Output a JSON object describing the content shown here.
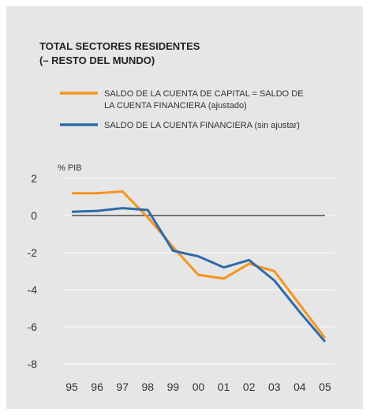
{
  "chart_data": {
    "type": "line",
    "title": "TOTAL SECTORES RESIDENTES",
    "subtitle": "(– RESTO DEL MUNDO)",
    "y_label": "% PIB",
    "categories": [
      "95",
      "96",
      "97",
      "98",
      "99",
      "00",
      "01",
      "02",
      "03",
      "04",
      "05"
    ],
    "series": [
      {
        "name": "SALDO DE LA CUENTA DE CAPITAL = SALDO DE LA CUENTA FINANCIERA (ajustado)",
        "color": "#f7941d",
        "values": [
          1.2,
          1.2,
          1.3,
          -0.1,
          -1.7,
          -3.2,
          -3.4,
          -2.6,
          -3.0,
          -4.8,
          -6.6
        ]
      },
      {
        "name": "SALDO DE LA CUENTA FINANCIERA (sin ajustar)",
        "color": "#2e6aa8",
        "values": [
          0.2,
          0.25,
          0.4,
          0.3,
          -1.9,
          -2.2,
          -2.8,
          -2.4,
          -3.5,
          -5.2,
          -6.8
        ]
      }
    ],
    "ylim": [
      -8,
      2
    ],
    "yticks": [
      2,
      0,
      -2,
      -4,
      -6,
      -8
    ],
    "grid": true
  }
}
